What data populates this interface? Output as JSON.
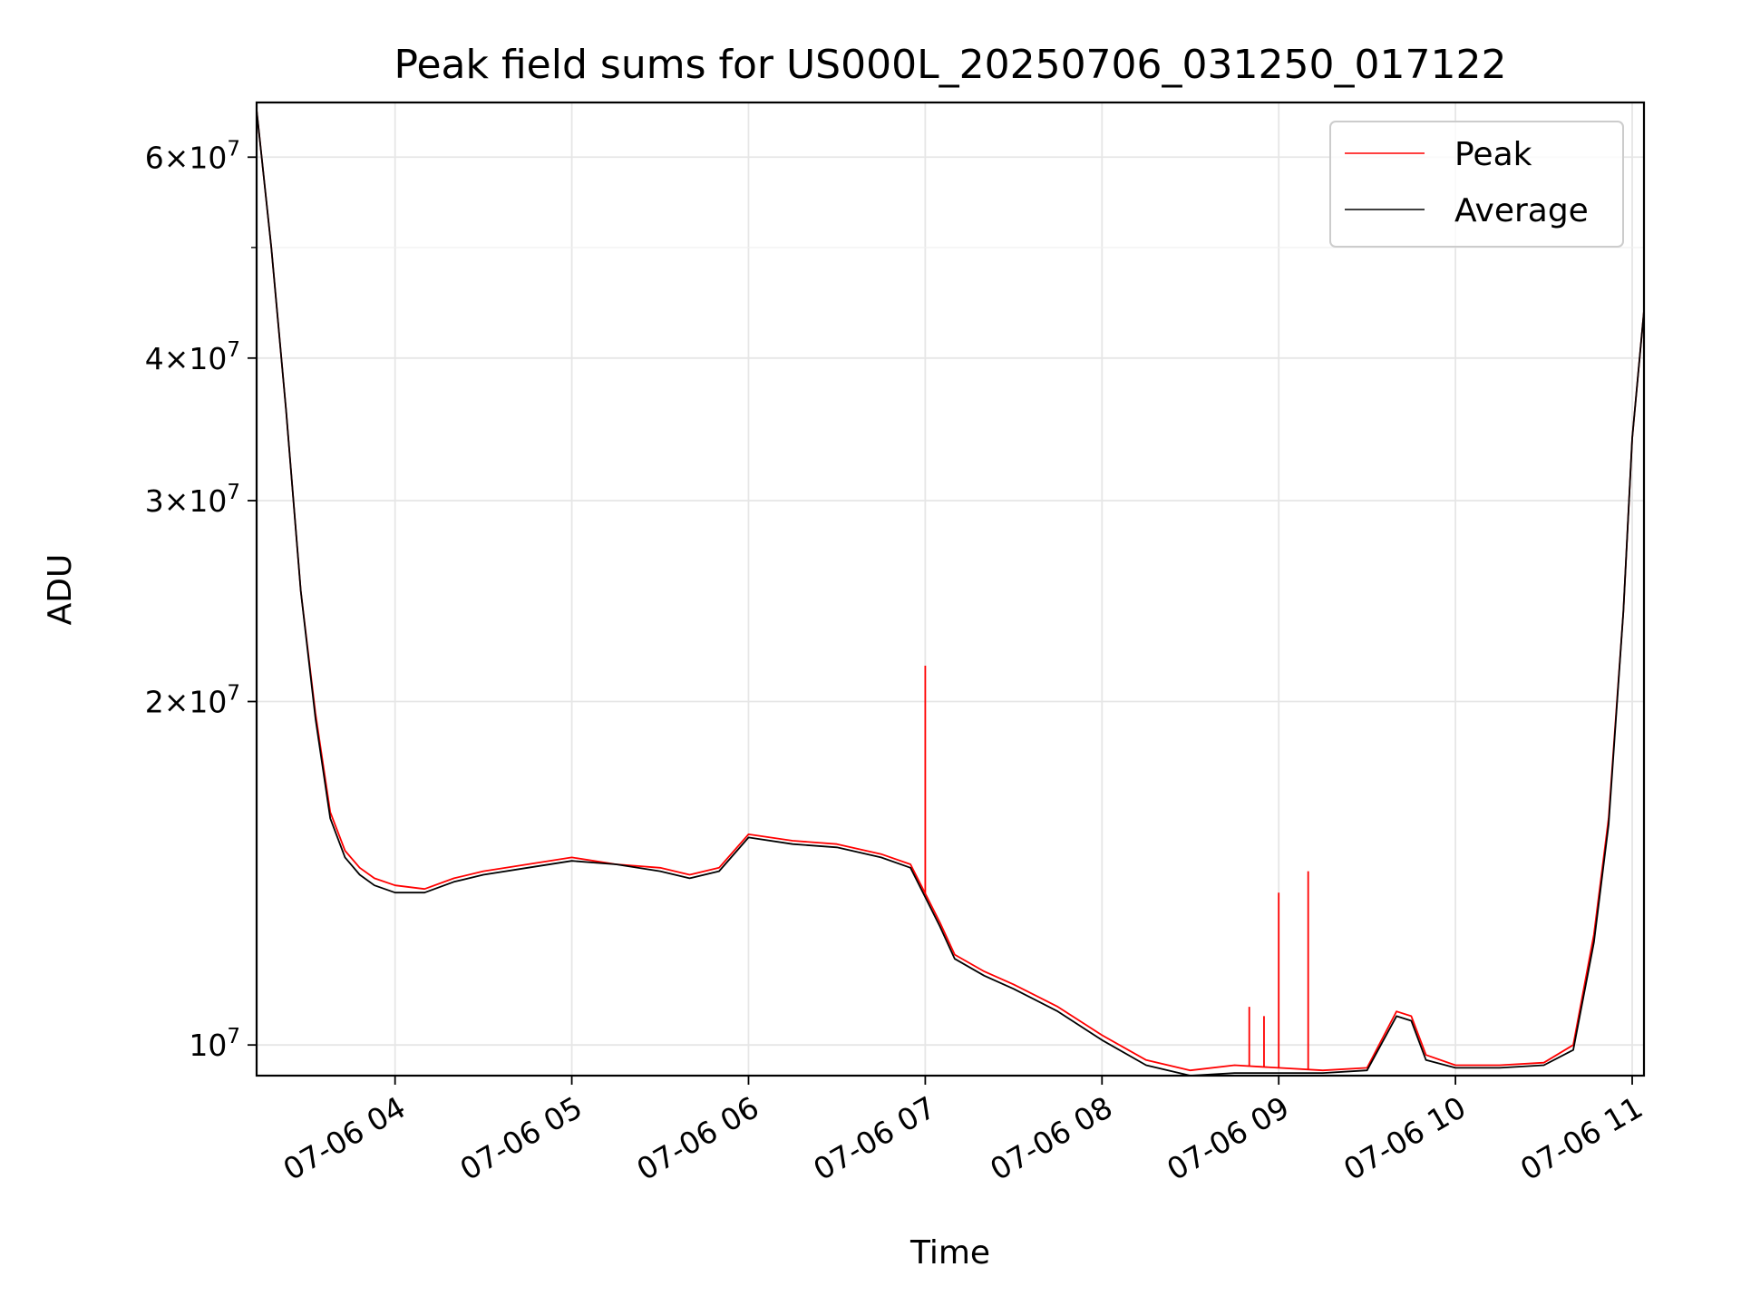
{
  "chart_data": {
    "type": "line",
    "title": "Peak field sums for US000L_20250706_031250_017122",
    "xlabel": "Time",
    "ylabel": "ADU",
    "yscale": "log",
    "grid": true,
    "legend_position": "top-right",
    "xlim": [
      "2025-07-06 03:13",
      "2025-07-06 11:04"
    ],
    "ylim": [
      9400000,
      67000000
    ],
    "x_ticks": [
      "07-06 04",
      "07-06 05",
      "07-06 06",
      "07-06 07",
      "07-06 08",
      "07-06 09",
      "07-06 10",
      "07-06 11"
    ],
    "x_tick_times": [
      "2025-07-06 04:00",
      "2025-07-06 05:00",
      "2025-07-06 06:00",
      "2025-07-06 07:00",
      "2025-07-06 08:00",
      "2025-07-06 09:00",
      "2025-07-06 10:00",
      "2025-07-06 11:00"
    ],
    "y_ticks": [
      {
        "base": "6",
        "exp": "7",
        "value": 60000000
      },
      {
        "base": "4",
        "exp": "7",
        "value": 40000000
      },
      {
        "base": "3",
        "exp": "7",
        "value": 30000000
      },
      {
        "base": "2",
        "exp": "7",
        "value": 20000000
      },
      {
        "base": "",
        "exp": "7",
        "value": 10000000
      }
    ],
    "y_minor_ticks": [
      50000000
    ],
    "x": [
      "2025-07-06 03:13",
      "2025-07-06 03:18",
      "2025-07-06 03:23",
      "2025-07-06 03:28",
      "2025-07-06 03:33",
      "2025-07-06 03:38",
      "2025-07-06 03:43",
      "2025-07-06 03:48",
      "2025-07-06 03:53",
      "2025-07-06 04:00",
      "2025-07-06 04:10",
      "2025-07-06 04:20",
      "2025-07-06 04:30",
      "2025-07-06 04:45",
      "2025-07-06 05:00",
      "2025-07-06 05:15",
      "2025-07-06 05:30",
      "2025-07-06 05:40",
      "2025-07-06 05:50",
      "2025-07-06 06:00",
      "2025-07-06 06:15",
      "2025-07-06 06:30",
      "2025-07-06 06:45",
      "2025-07-06 06:55",
      "2025-07-06 07:05",
      "2025-07-06 07:10",
      "2025-07-06 07:20",
      "2025-07-06 07:30",
      "2025-07-06 07:45",
      "2025-07-06 08:00",
      "2025-07-06 08:15",
      "2025-07-06 08:30",
      "2025-07-06 08:45",
      "2025-07-06 09:00",
      "2025-07-06 09:15",
      "2025-07-06 09:30",
      "2025-07-06 09:40",
      "2025-07-06 09:45",
      "2025-07-06 09:50",
      "2025-07-06 10:00",
      "2025-07-06 10:15",
      "2025-07-06 10:30",
      "2025-07-06 10:40",
      "2025-07-06 10:47",
      "2025-07-06 10:52",
      "2025-07-06 10:57",
      "2025-07-06 11:00",
      "2025-07-06 11:04"
    ],
    "series": [
      {
        "name": "Peak",
        "color": "#ff0000",
        "values": [
          66000000,
          50000000,
          36000000,
          25000000,
          19500000,
          16000000,
          14800000,
          14300000,
          14000000,
          13800000,
          13700000,
          14000000,
          14200000,
          14400000,
          14600000,
          14400000,
          14300000,
          14100000,
          14300000,
          15300000,
          15100000,
          15000000,
          14700000,
          14400000,
          12800000,
          12000000,
          11600000,
          11300000,
          10800000,
          10200000,
          9700000,
          9500000,
          9600000,
          9550000,
          9500000,
          9550000,
          10700000,
          10600000,
          9800000,
          9600000,
          9600000,
          9650000,
          10000000,
          12500000,
          15800000,
          24000000,
          34000000,
          44000000
        ],
        "spikes": [
          {
            "x": "2025-07-06 07:00",
            "value": 21500000
          },
          {
            "x": "2025-07-06 08:50",
            "value": 10800000
          },
          {
            "x": "2025-07-06 08:55",
            "value": 10600000
          },
          {
            "x": "2025-07-06 09:00",
            "value": 13600000
          },
          {
            "x": "2025-07-06 09:10",
            "value": 14200000
          }
        ]
      },
      {
        "name": "Average",
        "color": "#000000",
        "values": [
          66000000,
          50000000,
          36000000,
          25000000,
          19300000,
          15800000,
          14600000,
          14100000,
          13800000,
          13600000,
          13600000,
          13900000,
          14100000,
          14300000,
          14500000,
          14400000,
          14200000,
          14000000,
          14200000,
          15200000,
          15000000,
          14900000,
          14600000,
          14300000,
          12700000,
          11900000,
          11500000,
          11200000,
          10700000,
          10100000,
          9600000,
          9400000,
          9450000,
          9450000,
          9450000,
          9500000,
          10600000,
          10500000,
          9700000,
          9550000,
          9550000,
          9600000,
          9900000,
          12300000,
          15600000,
          24000000,
          34000000,
          44000000
        ]
      }
    ]
  }
}
